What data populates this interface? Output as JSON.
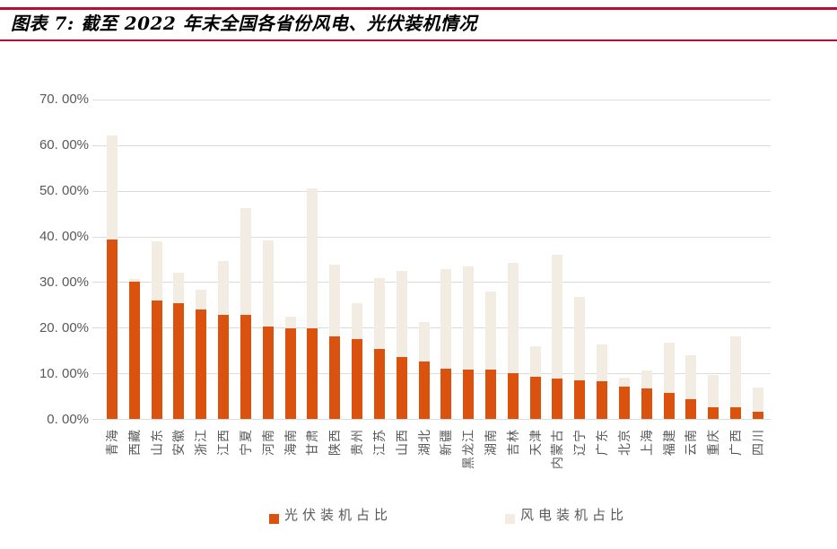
{
  "header": {
    "title": "图表 7: 截至 2022 年末全国各省份风电、光伏装机情况"
  },
  "colors": {
    "accent_red": "#C00A32",
    "pv_orange": "#DB520E",
    "wind_beige": "#F2ECE2",
    "gridline": "#DCDCDC",
    "axis_text": "#595959",
    "title_text": "#000000"
  },
  "chart_data": {
    "type": "bar",
    "title": "截至 2022 年末全国各省份风电、光伏装机情况",
    "categories": [
      "青海",
      "西藏",
      "山东",
      "安徽",
      "浙江",
      "江西",
      "宁夏",
      "河南",
      "海南",
      "甘肃",
      "陕西",
      "贵州",
      "江苏",
      "山西",
      "湖北",
      "新疆",
      "黑龙江",
      "湖南",
      "吉林",
      "天津",
      "内蒙古",
      "辽宁",
      "广东",
      "北京",
      "上海",
      "福建",
      "云南",
      "重庆",
      "广西",
      "四川"
    ],
    "series": [
      {
        "name": "光伏装机占比",
        "color": "#DB520E",
        "values": [
          39.5,
          30.2,
          26.0,
          25.4,
          24.1,
          23.0,
          22.9,
          20.3,
          20.0,
          19.9,
          18.2,
          17.6,
          15.4,
          13.6,
          12.6,
          11.2,
          11.0,
          10.9,
          10.2,
          9.4,
          9.0,
          8.5,
          8.4,
          7.1,
          6.8,
          5.8,
          4.5,
          2.7,
          2.7,
          1.6
        ]
      },
      {
        "name": "风电装机占比",
        "color": "#F2ECE2",
        "values": [
          62.3,
          30.7,
          39.0,
          32.2,
          28.4,
          34.7,
          46.3,
          39.2,
          22.5,
          50.6,
          34.0,
          25.5,
          30.9,
          32.5,
          21.4,
          32.9,
          33.6,
          28.1,
          34.3,
          16.0,
          36.1,
          26.8,
          16.5,
          9.2,
          10.8,
          16.8,
          14.1,
          9.8,
          18.2,
          7.0
        ]
      }
    ],
    "xlabel": "",
    "ylabel": "",
    "ylim": [
      0,
      70
    ],
    "ytick_step": 10,
    "ytick_labels": [
      "0. 00%",
      "10. 00%",
      "20. 00%",
      "30. 00%",
      "40. 00%",
      "50. 00%",
      "60. 00%",
      "70. 00%"
    ],
    "grid": true,
    "bar_mode": "overlapped",
    "legend_position": "bottom",
    "x_label_rotation": -90
  }
}
